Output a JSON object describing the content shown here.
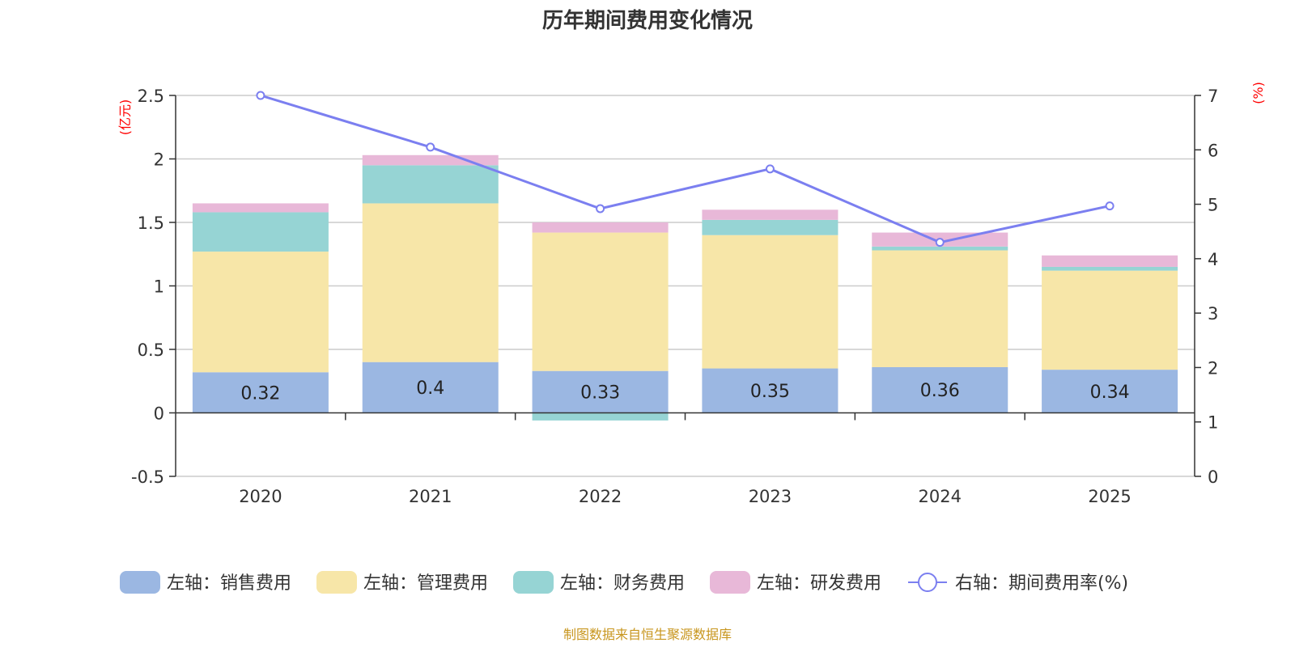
{
  "chart_data": {
    "type": "bar",
    "title": "历年期间费用变化情况",
    "categories": [
      "2020",
      "2021",
      "2022",
      "2023",
      "2024",
      "2025"
    ],
    "left_axis": {
      "unit": "(亿元)",
      "ylim": [
        -0.5,
        2.5
      ],
      "ticks": [
        -0.5,
        0,
        0.5,
        1,
        1.5,
        2,
        2.5
      ]
    },
    "right_axis": {
      "unit": "(%)",
      "ylim": [
        0,
        7
      ],
      "ticks": [
        0,
        1,
        2,
        3,
        4,
        5,
        6,
        7
      ]
    },
    "series": [
      {
        "name": "左轴：销售费用",
        "axis": "left",
        "type": "bar",
        "color": "#9bb7e2",
        "values": [
          0.32,
          0.4,
          0.33,
          0.35,
          0.36,
          0.34
        ],
        "labels": [
          "0.32",
          "0.4",
          "0.33",
          "0.35",
          "0.36",
          "0.34"
        ]
      },
      {
        "name": "左轴：管理费用",
        "axis": "left",
        "type": "bar",
        "color": "#f7e6a8",
        "values": [
          0.95,
          1.25,
          1.09,
          1.05,
          0.92,
          0.78
        ]
      },
      {
        "name": "左轴：财务费用",
        "axis": "left",
        "type": "bar",
        "color": "#96d4d4",
        "values": [
          0.31,
          0.3,
          -0.06,
          0.12,
          0.03,
          0.03
        ]
      },
      {
        "name": "左轴：研发费用",
        "axis": "left",
        "type": "bar",
        "color": "#e8b8d8",
        "values": [
          0.07,
          0.08,
          0.08,
          0.08,
          0.11,
          0.09
        ]
      },
      {
        "name": "右轴：期间费用率(%)",
        "axis": "right",
        "type": "line",
        "color": "#7b7ff0",
        "values": [
          7.0,
          6.05,
          4.92,
          5.65,
          4.3,
          4.97
        ]
      }
    ]
  },
  "footer": {
    "source": "制图数据来自恒生聚源数据库"
  }
}
